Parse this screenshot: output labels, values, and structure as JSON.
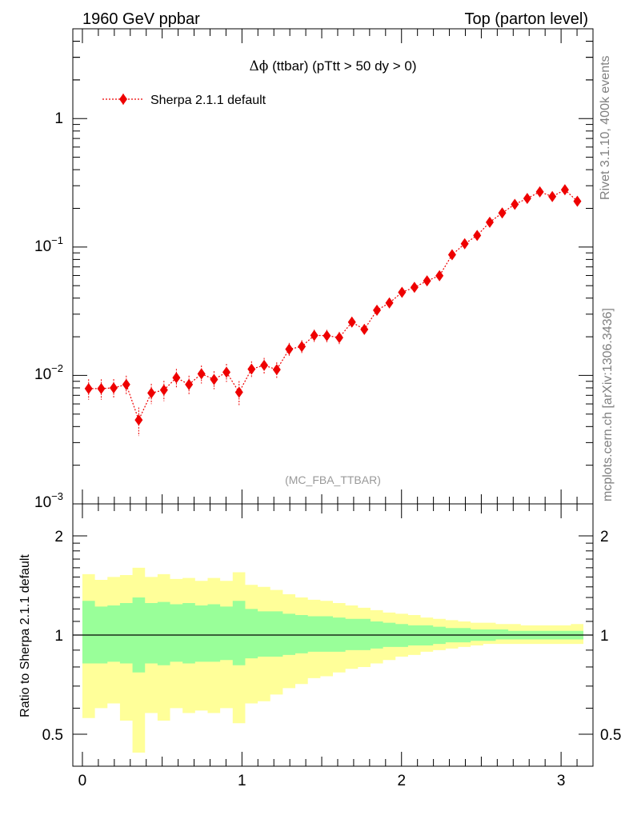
{
  "header": {
    "left": "1960 GeV ppbar",
    "right": "Top (parton level)"
  },
  "side": {
    "rivet": "Rivet 3.1.10,  400k events",
    "mcplots": "mcplots.cern.ch [arXiv:1306.3436]"
  },
  "main_panel": {
    "title_symbol": "Δϕ",
    "title_rest": " (ttbar) (pTtt > 50 dy > 0)",
    "analysis_label": "(MC_FBA_TTBAR)",
    "y_tick_labels": {
      "one": "1",
      "tenth_base": "10",
      "tenth_exp": "−1",
      "hundredth_base": "10",
      "hundredth_exp": "−2",
      "thousandth_base": "10",
      "thousandth_exp": "−3"
    }
  },
  "ratio_panel": {
    "ylabel": "Ratio to Sherpa 2.1.1 default",
    "y_tick_labels": [
      "0.5",
      "1",
      "2"
    ]
  },
  "x_tick_labels": [
    "0",
    "1",
    "2",
    "3"
  ],
  "colors": {
    "series": "#ee0000",
    "band_inner": "#99ff99",
    "band_outer": "#ffff99",
    "side_text": "#808080"
  },
  "chart_data": [
    {
      "type": "scatter",
      "scale": "log-y",
      "xlim": [
        -0.06,
        3.2
      ],
      "ylim": [
        0.001,
        5
      ],
      "series": [
        {
          "name": "Sherpa 2.1.1 default",
          "x": [
            0.039,
            0.118,
            0.196,
            0.275,
            0.353,
            0.432,
            0.511,
            0.589,
            0.668,
            0.746,
            0.825,
            0.903,
            0.982,
            1.06,
            1.139,
            1.218,
            1.296,
            1.375,
            1.453,
            1.532,
            1.61,
            1.689,
            1.767,
            1.846,
            1.924,
            2.003,
            2.081,
            2.16,
            2.238,
            2.317,
            2.396,
            2.474,
            2.553,
            2.631,
            2.71,
            2.788,
            2.867,
            2.945,
            3.024,
            3.102
          ],
          "y": [
            0.0079,
            0.0079,
            0.008,
            0.0085,
            0.0045,
            0.0073,
            0.0077,
            0.0096,
            0.0085,
            0.0103,
            0.0093,
            0.0106,
            0.0074,
            0.0112,
            0.012,
            0.0111,
            0.016,
            0.0168,
            0.0205,
            0.0204,
            0.0197,
            0.026,
            0.0228,
            0.0322,
            0.0367,
            0.0444,
            0.0485,
            0.0545,
            0.0598,
            0.087,
            0.106,
            0.123,
            0.156,
            0.184,
            0.215,
            0.239,
            0.269,
            0.247,
            0.279,
            0.227
          ],
          "yerr_rel": [
            0.18,
            0.18,
            0.17,
            0.17,
            0.25,
            0.18,
            0.18,
            0.17,
            0.17,
            0.16,
            0.16,
            0.16,
            0.22,
            0.15,
            0.14,
            0.14,
            0.12,
            0.12,
            0.11,
            0.11,
            0.11,
            0.1,
            0.1,
            0.09,
            0.09,
            0.08,
            0.08,
            0.07,
            0.07,
            0.06,
            0.05,
            0.05,
            0.04,
            0.04,
            0.04,
            0.04,
            0.03,
            0.03,
            0.03,
            0.03
          ]
        }
      ]
    },
    {
      "type": "area",
      "ylabel": "Ratio to Sherpa 2.1.1 default",
      "scale": "log-y",
      "xlim": [
        -0.06,
        3.2
      ],
      "ylim": [
        0.4,
        2.5
      ],
      "reference_line": 1,
      "bin_edges": [
        0,
        0.0785,
        0.157,
        0.2355,
        0.314,
        0.3925,
        0.471,
        0.5495,
        0.628,
        0.7065,
        0.785,
        0.8635,
        0.942,
        1.0205,
        1.099,
        1.1775,
        1.256,
        1.3345,
        1.413,
        1.4915,
        1.57,
        1.6485,
        1.727,
        1.8055,
        1.884,
        1.9625,
        2.041,
        2.1195,
        2.198,
        2.2765,
        2.355,
        2.4335,
        2.512,
        2.5905,
        2.669,
        2.7475,
        2.826,
        2.9045,
        2.983,
        3.0615,
        3.14
      ],
      "series": [
        {
          "name": "inner band",
          "low": [
            0.82,
            0.82,
            0.83,
            0.82,
            0.77,
            0.82,
            0.81,
            0.83,
            0.82,
            0.83,
            0.83,
            0.84,
            0.81,
            0.85,
            0.86,
            0.86,
            0.87,
            0.88,
            0.89,
            0.89,
            0.89,
            0.9,
            0.9,
            0.91,
            0.92,
            0.92,
            0.93,
            0.93,
            0.94,
            0.95,
            0.95,
            0.96,
            0.96,
            0.97,
            0.97,
            0.97,
            0.97,
            0.97,
            0.97,
            0.97
          ],
          "high": [
            1.27,
            1.22,
            1.23,
            1.25,
            1.3,
            1.25,
            1.26,
            1.24,
            1.25,
            1.23,
            1.24,
            1.22,
            1.27,
            1.2,
            1.18,
            1.18,
            1.16,
            1.15,
            1.14,
            1.14,
            1.13,
            1.12,
            1.12,
            1.1,
            1.09,
            1.08,
            1.07,
            1.07,
            1.06,
            1.05,
            1.05,
            1.04,
            1.04,
            1.04,
            1.03,
            1.03,
            1.03,
            1.03,
            1.03,
            1.03
          ]
        },
        {
          "name": "outer band",
          "low": [
            0.56,
            0.6,
            0.62,
            0.55,
            0.44,
            0.58,
            0.55,
            0.6,
            0.58,
            0.59,
            0.58,
            0.6,
            0.54,
            0.62,
            0.63,
            0.66,
            0.69,
            0.71,
            0.74,
            0.75,
            0.77,
            0.79,
            0.8,
            0.82,
            0.84,
            0.86,
            0.87,
            0.89,
            0.9,
            0.91,
            0.92,
            0.93,
            0.94,
            0.94,
            0.94,
            0.94,
            0.94,
            0.94,
            0.94,
            0.94
          ],
          "high": [
            1.53,
            1.47,
            1.5,
            1.52,
            1.6,
            1.5,
            1.53,
            1.48,
            1.49,
            1.46,
            1.49,
            1.46,
            1.55,
            1.42,
            1.4,
            1.37,
            1.33,
            1.3,
            1.28,
            1.27,
            1.25,
            1.23,
            1.21,
            1.19,
            1.17,
            1.16,
            1.15,
            1.13,
            1.12,
            1.11,
            1.1,
            1.09,
            1.09,
            1.08,
            1.08,
            1.07,
            1.07,
            1.07,
            1.07,
            1.08
          ]
        }
      ]
    }
  ]
}
